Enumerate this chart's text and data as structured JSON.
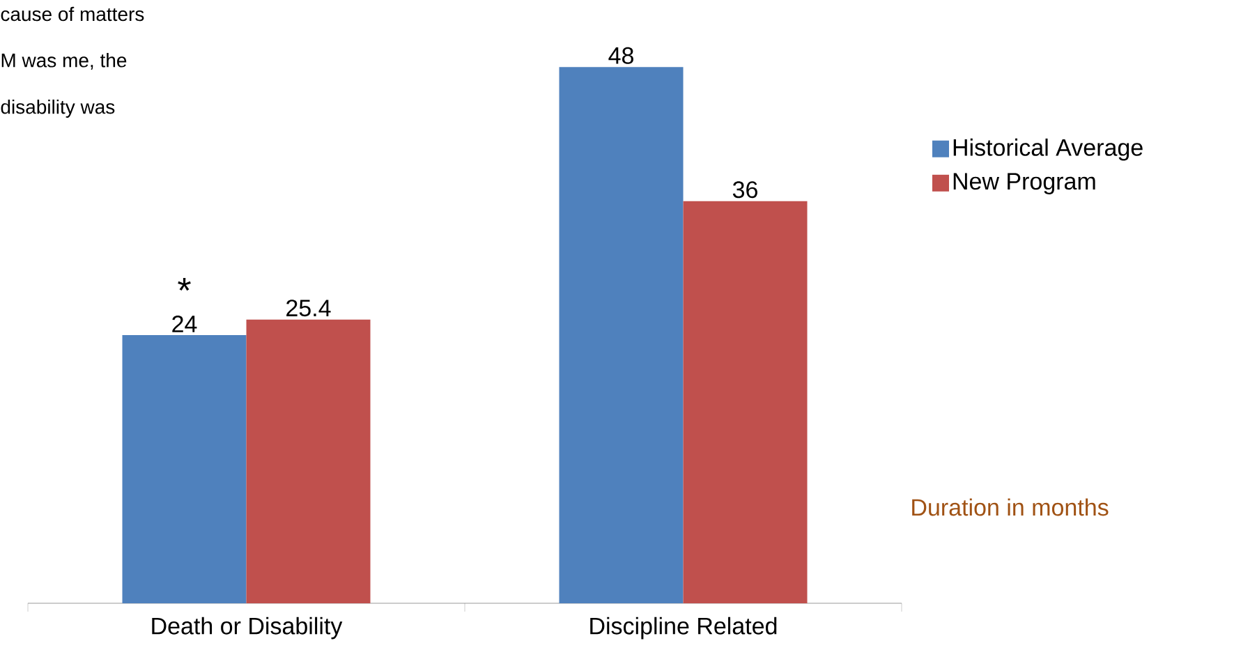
{
  "chart_data": {
    "type": "bar",
    "categories": [
      "Death or Disability",
      "Discipline Related"
    ],
    "series": [
      {
        "name": "Historical Average",
        "color": "#4f81bd",
        "values": [
          24,
          48
        ]
      },
      {
        "name": "New Program",
        "color": "#c0504d",
        "values": [
          25.4,
          36
        ]
      }
    ],
    "data_labels": true,
    "legend": "right",
    "annotations": [
      "cause of matters",
      "M was me, the",
      "disability was",
      {
        "text": "*",
        "x": "Death or Disability",
        "y": 24
      },
      "Duration in months"
    ]
  }
}
